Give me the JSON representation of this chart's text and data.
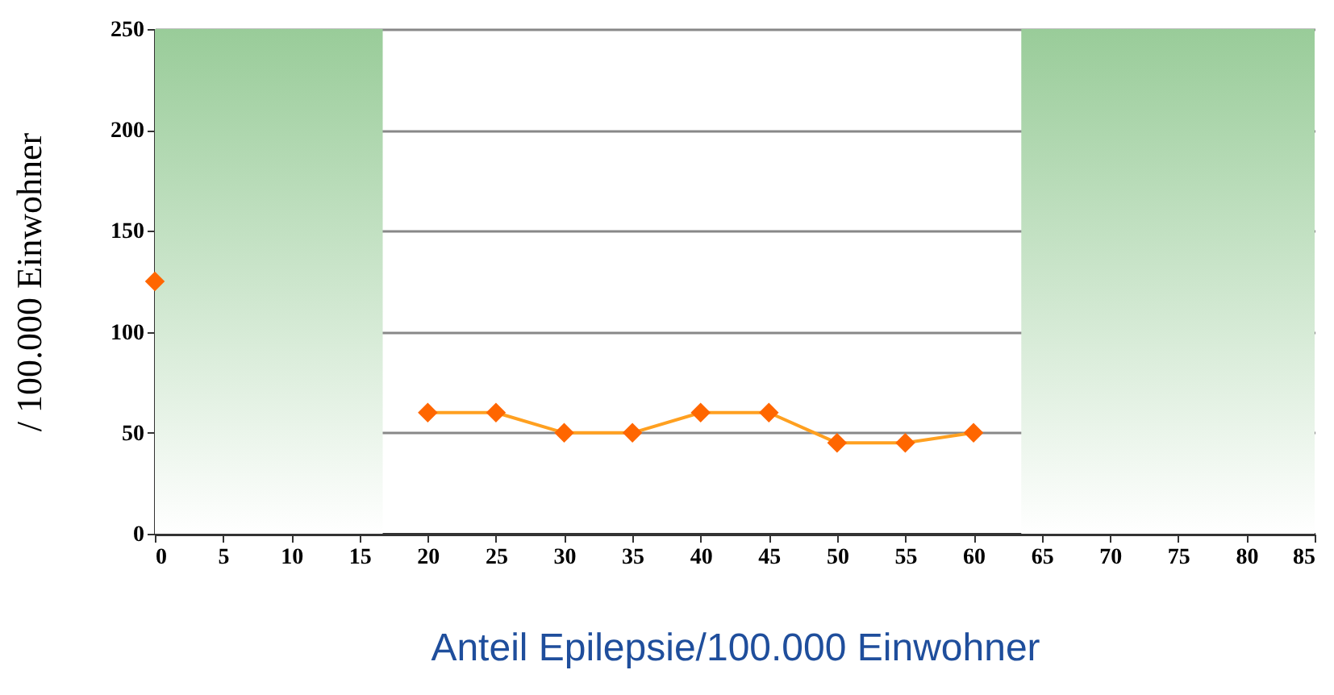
{
  "chart_data": {
    "type": "line",
    "xlabel": "Anteil Epilepsie/100.000 Einwohner",
    "ylabel": "/ 100.000 Einwohner",
    "x": [
      0,
      5,
      10,
      15,
      20,
      25,
      30,
      35,
      40,
      45,
      50,
      55,
      60
    ],
    "series": [
      {
        "color": "#ff6600",
        "values": [
          125,
          null,
          null,
          null,
          60,
          60,
          50,
          50,
          60,
          60,
          45,
          45,
          50
        ]
      }
    ],
    "xlim": [
      0,
      85
    ],
    "xticks": [
      0,
      5,
      10,
      15,
      20,
      25,
      30,
      35,
      40,
      45,
      50,
      55,
      60,
      65,
      70,
      75,
      80,
      85
    ],
    "ylim": [
      0,
      250
    ],
    "yticks": [
      0,
      50,
      100,
      150,
      200,
      250
    ],
    "grid": "y",
    "marker": "diamond",
    "line_style": "solid",
    "bands": [
      {
        "axis": "x",
        "from": 0,
        "to": 16.7,
        "color": "#99cc99"
      },
      {
        "axis": "x",
        "from": 63.5,
        "to": 85,
        "color": "#99cc99"
      }
    ]
  }
}
